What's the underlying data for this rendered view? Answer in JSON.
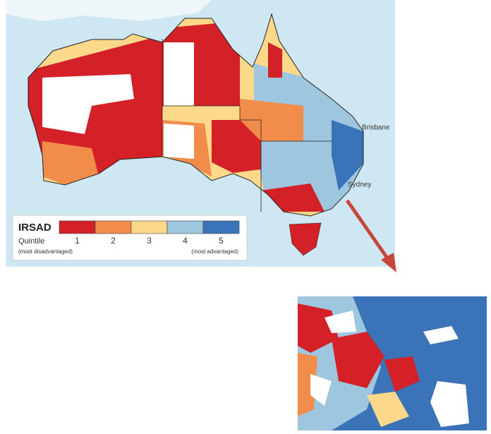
{
  "legend": {
    "title": "IRSAD",
    "subtitle": "Quintile",
    "low_note": "(most disadvantaged)",
    "high_note": "(most advantaged)",
    "items": [
      {
        "label": "1",
        "color": "#d42027"
      },
      {
        "label": "2",
        "color": "#f28c4a"
      },
      {
        "label": "3",
        "color": "#fcd98a"
      },
      {
        "label": "4",
        "color": "#9ec7df"
      },
      {
        "label": "5",
        "color": "#3a73b8"
      }
    ]
  },
  "places": [
    "Brisbane",
    "Sydney"
  ]
}
